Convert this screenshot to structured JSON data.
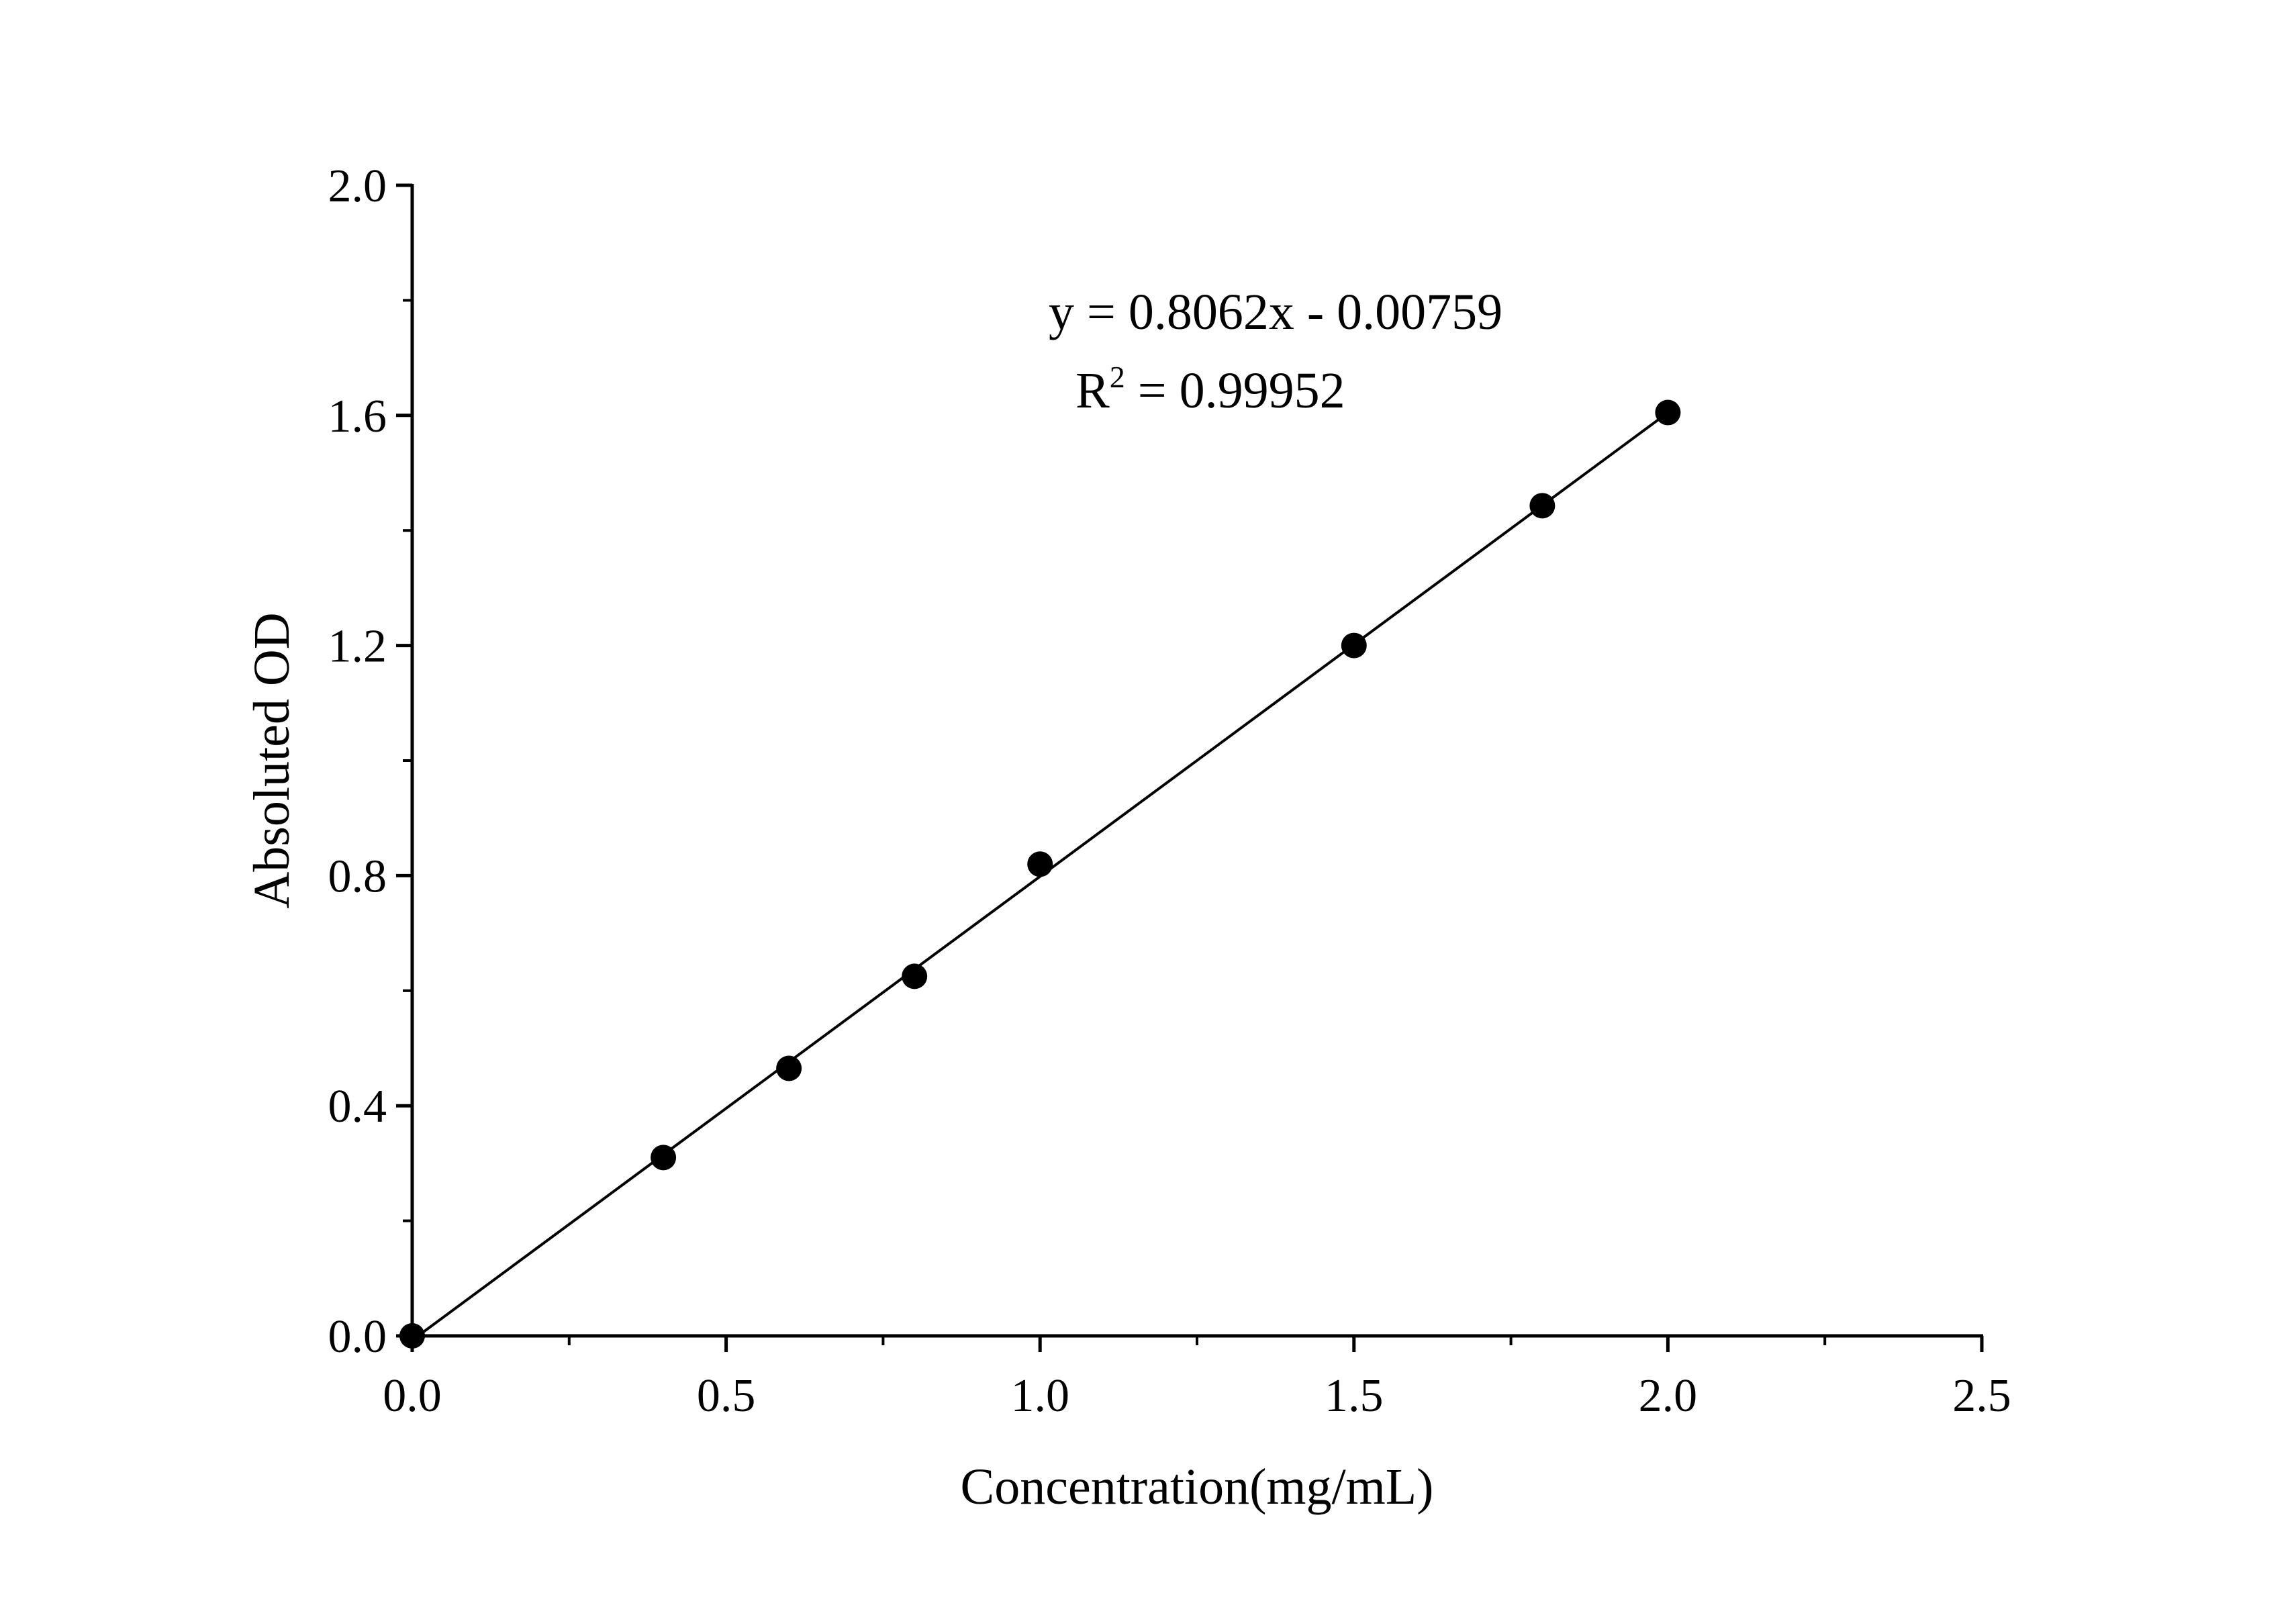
{
  "chart_data": {
    "type": "scatter",
    "xlabel": "Concentration(mg/mL)",
    "ylabel": "Absoluted OD",
    "xlim": [
      0.0,
      2.5
    ],
    "ylim": [
      0.0,
      2.0
    ],
    "x_major_ticks": [
      0.0,
      0.5,
      1.0,
      1.5,
      2.0,
      2.5
    ],
    "x_tick_labels": [
      "0.0",
      "0.5",
      "1.0",
      "1.5",
      "2.0",
      "2.5"
    ],
    "x_minor_ticks": [
      0.25,
      0.75,
      1.25,
      1.75,
      2.25
    ],
    "y_major_ticks": [
      0.0,
      0.4,
      0.8,
      1.2,
      1.6,
      2.0
    ],
    "y_tick_labels": [
      "0.0",
      "0.4",
      "0.8",
      "1.2",
      "1.6",
      "2.0"
    ],
    "y_minor_ticks": [
      0.2,
      0.6,
      1.0,
      1.4,
      1.8
    ],
    "grid": false,
    "legend": "none",
    "points": {
      "x": [
        0.0,
        0.4,
        0.6,
        0.8,
        1.0,
        1.5,
        1.8,
        2.0
      ],
      "y": [
        0.0,
        0.31,
        0.465,
        0.625,
        0.82,
        1.2,
        1.443,
        1.605
      ]
    },
    "fit_line": {
      "slope": 0.8062,
      "intercept": -0.00759,
      "x_range": [
        0.0,
        2.0
      ]
    },
    "annotation": {
      "equation": "y = 0.8062x - 0.00759",
      "r2_prefix": "R",
      "r2_superscript": "2",
      "r2_value": " = 0.99952"
    },
    "colors": {
      "marker": "#000000",
      "line": "#000000",
      "axis": "#000000"
    }
  }
}
